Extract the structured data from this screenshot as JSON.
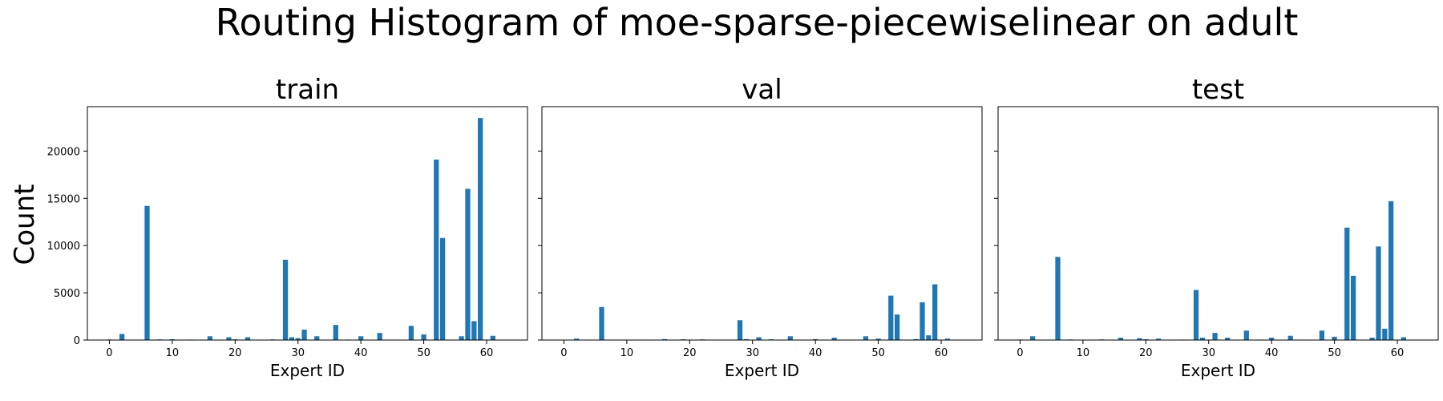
{
  "figure": {
    "title": "Routing Histogram of moe-sparse-piecewiselinear on adult",
    "ylabel": "Count",
    "bar_color": "#1f77b4"
  },
  "chart_data": [
    {
      "type": "bar",
      "title": "train",
      "xlabel": "Expert ID",
      "ylabel": "Count",
      "xlim": [
        -3.5,
        66.5
      ],
      "ylim": [
        0,
        24700
      ],
      "xticks": [
        0,
        10,
        20,
        30,
        40,
        50,
        60
      ],
      "yticks": [
        0,
        5000,
        10000,
        15000,
        20000
      ],
      "grid": false,
      "x": [
        0,
        2,
        6,
        8,
        10,
        13,
        16,
        19,
        20,
        22,
        26,
        28,
        29,
        30,
        31,
        33,
        36,
        38,
        40,
        43,
        48,
        50,
        52,
        53,
        54,
        56,
        57,
        58,
        59,
        61
      ],
      "values": [
        60,
        650,
        14200,
        70,
        90,
        50,
        400,
        300,
        80,
        300,
        70,
        8500,
        300,
        200,
        1100,
        400,
        1600,
        50,
        400,
        750,
        1500,
        600,
        19100,
        10800,
        30,
        400,
        16000,
        2000,
        23500,
        450
      ]
    },
    {
      "type": "bar",
      "title": "val",
      "xlabel": "Expert ID",
      "ylim": [
        0,
        24700
      ],
      "xlim": [
        -3.5,
        66.5
      ],
      "xticks": [
        0,
        10,
        20,
        30,
        40,
        50,
        60
      ],
      "grid": false,
      "x": [
        0,
        2,
        6,
        8,
        13,
        16,
        19,
        20,
        22,
        28,
        29,
        31,
        33,
        36,
        40,
        43,
        48,
        50,
        52,
        53,
        56,
        57,
        58,
        59,
        61
      ],
      "values": [
        20,
        150,
        3500,
        30,
        30,
        100,
        80,
        30,
        70,
        2100,
        100,
        300,
        80,
        400,
        100,
        250,
        400,
        150,
        4700,
        2700,
        100,
        4000,
        500,
        5900,
        150
      ]
    },
    {
      "type": "bar",
      "title": "test",
      "xlabel": "Expert ID",
      "ylim": [
        0,
        24700
      ],
      "xlim": [
        -3.5,
        66.5
      ],
      "xticks": [
        0,
        10,
        20,
        30,
        40,
        50,
        60
      ],
      "grid": false,
      "x": [
        0,
        2,
        6,
        8,
        13,
        16,
        19,
        20,
        22,
        26,
        28,
        29,
        31,
        33,
        36,
        38,
        40,
        43,
        48,
        50,
        52,
        53,
        54,
        56,
        57,
        58,
        59,
        61
      ],
      "values": [
        50,
        400,
        8800,
        60,
        70,
        250,
        200,
        80,
        150,
        50,
        5300,
        250,
        750,
        250,
        1000,
        50,
        250,
        450,
        1000,
        350,
        11900,
        6800,
        30,
        250,
        9900,
        1200,
        14700,
        300
      ]
    }
  ]
}
